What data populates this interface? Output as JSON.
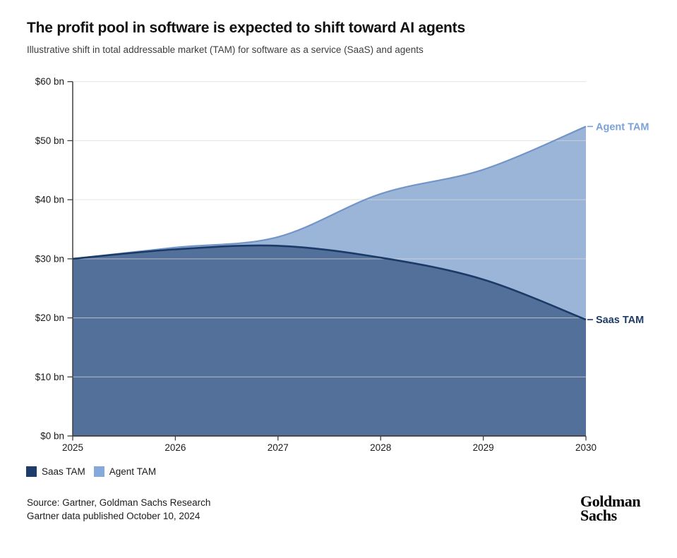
{
  "header": {
    "title": "The profit pool in software is expected to shift toward AI agents",
    "subtitle": "Illustrative shift in total addressable market (TAM) for software as a service (SaaS) and agents"
  },
  "chart_data": {
    "type": "area",
    "stacked": true,
    "title": "The profit pool in software is expected to shift toward AI agents",
    "xlabel": "",
    "ylabel": "",
    "x": [
      2025,
      2026,
      2027,
      2028,
      2029,
      2030
    ],
    "series": [
      {
        "name": "Saas TAM",
        "values": [
          30,
          31.6,
          32.2,
          30.2,
          26.5,
          19.7
        ],
        "fill_color": "#53709B",
        "line_color": "#1B3A66",
        "label_color": "#1F3B66"
      },
      {
        "name": "Agent TAM",
        "values": [
          0,
          0.3,
          1.5,
          10.8,
          18.6,
          32.7
        ],
        "fill_color": "#9BB5D9",
        "line_color": "#7295C8",
        "label_color": "#7CA2D6"
      }
    ],
    "stacked_totals": [
      30,
      31.9,
      33.7,
      41.0,
      45.1,
      52.4
    ],
    "ylim": [
      0,
      60
    ],
    "ytick_values": [
      0,
      10,
      20,
      30,
      40,
      50,
      60
    ],
    "ytick_labels": [
      "$0 bn",
      "$10 bn",
      "$20 bn",
      "$30 bn",
      "$40 bn",
      "$50 bn",
      "$60 bn"
    ],
    "xtick_labels": [
      "2025",
      "2026",
      "2027",
      "2028",
      "2029",
      "2030"
    ],
    "grid": true,
    "gridline_color": "#D9D9D9",
    "axis_color": "#3F3F3F",
    "tick_text_color": "#1A1A1A",
    "legend_position": "bottom",
    "right_labels": [
      {
        "text": "Agent TAM",
        "attach": "total"
      },
      {
        "text": "Saas TAM",
        "attach": "saas"
      }
    ]
  },
  "legend": {
    "items": [
      {
        "label": "Saas TAM",
        "color": "#1E3C6A"
      },
      {
        "label": "Agent TAM",
        "color": "#85A9DA"
      }
    ]
  },
  "footer": {
    "source_line1": "Source: Gartner, Goldman Sachs Research",
    "source_line2": "Gartner data published October 10, 2024",
    "logo_line1": "Goldman",
    "logo_line2": "Sachs"
  }
}
